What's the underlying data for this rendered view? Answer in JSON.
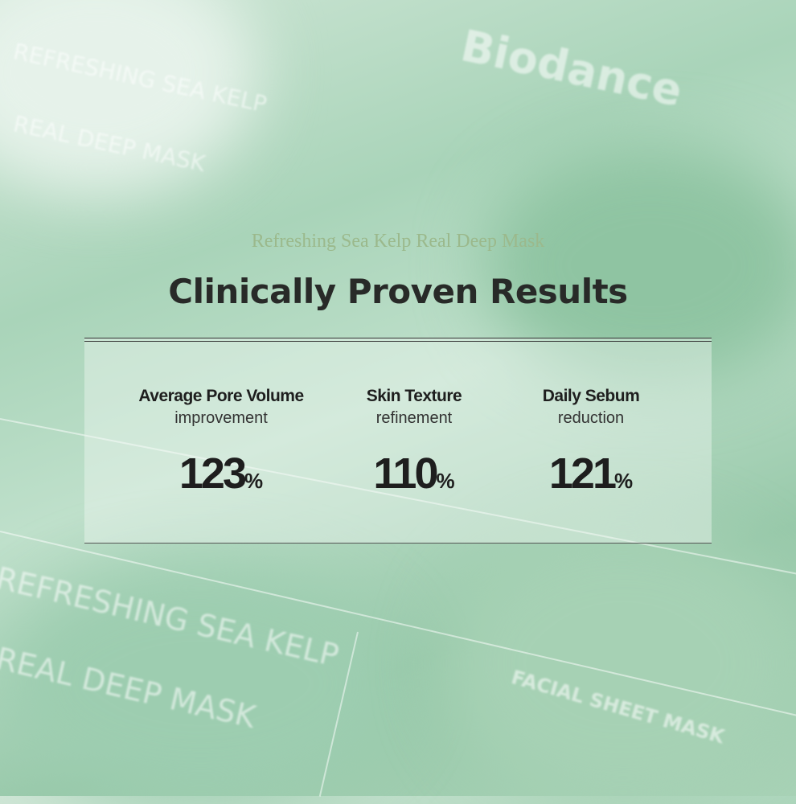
{
  "background": {
    "brand": "Biodance",
    "pack_texts": [
      "REFRESHING SEA KELP",
      "REAL DEEP MASK",
      "FACIAL SHEET MASK"
    ]
  },
  "header": {
    "subtitle": "Refreshing Sea Kelp Real Deep Mask",
    "title": "Clinically Proven Results"
  },
  "results": [
    {
      "label": "Average Pore Volume",
      "sub": "improvement",
      "value": "123",
      "unit": "%"
    },
    {
      "label": "Skin Texture",
      "sub": "refinement",
      "value": "110",
      "unit": "%"
    },
    {
      "label": "Daily Sebum",
      "sub": "reduction",
      "value": "121",
      "unit": "%"
    }
  ],
  "colors": {
    "subtitle": "#9bb98c",
    "title": "#282a28",
    "background": "#a9d4b9"
  }
}
